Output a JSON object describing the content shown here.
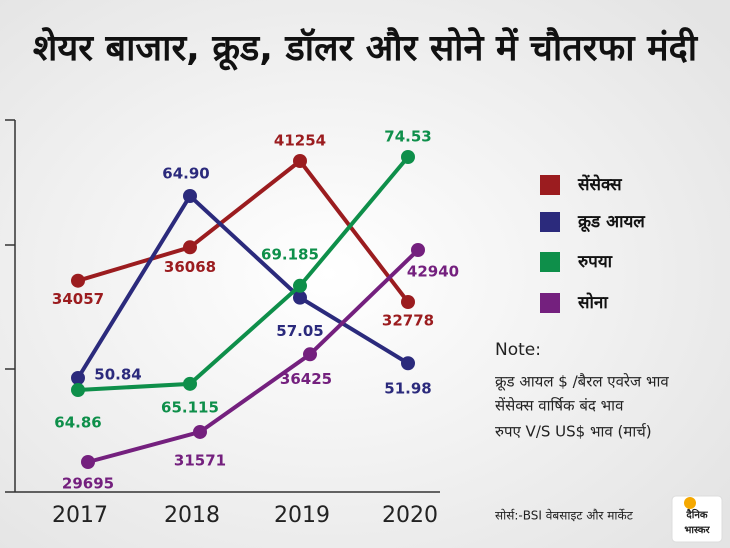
{
  "chart_data": {
    "type": "line",
    "title": "शेयर बाजार, क्रूड, डॉलर और सोने में चौतरफा मंदी",
    "categories": [
      "2017",
      "2018",
      "2019",
      "2020"
    ],
    "series": [
      {
        "name": "सेंसेक्स",
        "color": "#9b1c1f",
        "values": [
          34057,
          36068,
          41254,
          32778
        ]
      },
      {
        "name": "क्रूड आयल",
        "color": "#2b2a7c",
        "values": [
          50.84,
          64.9,
          57.05,
          51.98
        ],
        "value_labels": [
          "50.84",
          "64.90",
          "57.05",
          "51.98"
        ]
      },
      {
        "name": "रुपया",
        "color": "#0e8f4a",
        "values": [
          64.86,
          65.115,
          69.185,
          74.53
        ]
      },
      {
        "name": "सोना",
        "color": "#74207e",
        "values": [
          29695,
          31571,
          36425,
          42940
        ]
      }
    ],
    "note": {
      "heading": "Note:",
      "lines": [
        "क्रूड आयल $ /बैरल एवरेज भाव",
        "सेंसेक्स वार्षिक बंद भाव",
        "रुपए V/S US$ भाव (मार्च)"
      ]
    },
    "source": "सोर्स:-BSI वेबसाइट और मार्केट",
    "logo": [
      "दैनिक",
      "भास्कर"
    ]
  }
}
